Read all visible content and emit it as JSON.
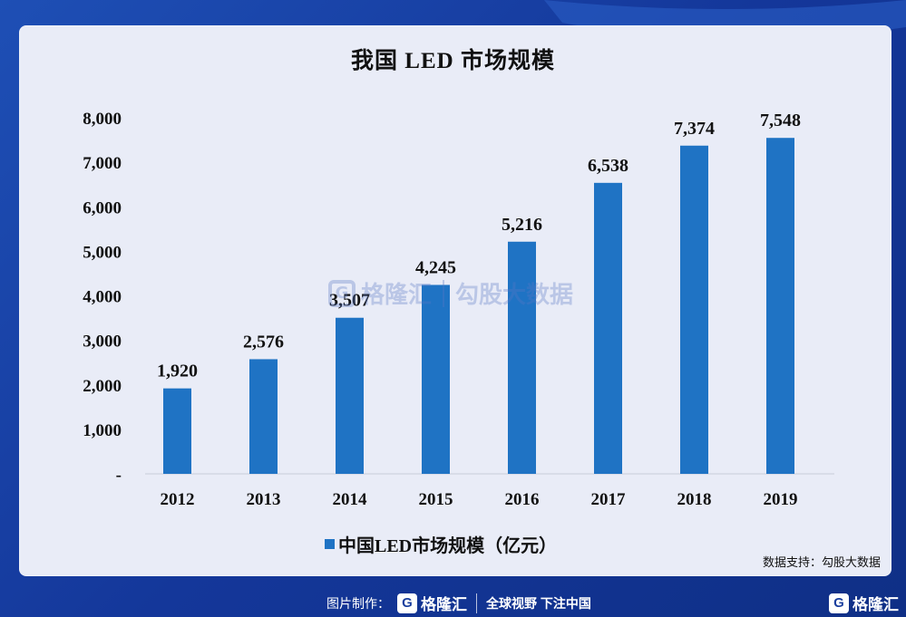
{
  "chart_data": {
    "type": "bar",
    "title": "我国 LED 市场规模",
    "categories": [
      "2012",
      "2013",
      "2014",
      "2015",
      "2016",
      "2017",
      "2018",
      "2019"
    ],
    "series": [
      {
        "name": "中国LED市场规模（亿元）",
        "values": [
          1920,
          2576,
          3507,
          4245,
          5216,
          6538,
          7374,
          7548
        ],
        "labels": [
          "1,920",
          "2,576",
          "3,507",
          "4,245",
          "5,216",
          "6,538",
          "7,374",
          "7,548"
        ]
      }
    ],
    "yticks": [
      "-",
      "1,000",
      "2,000",
      "3,000",
      "4,000",
      "5,000",
      "6,000",
      "7,000",
      "8,000"
    ],
    "ylim": [
      0,
      8000
    ],
    "grid": false,
    "legend": "bottom",
    "bar_color": "#1f73c4"
  },
  "source_text": "数据支持：勾股大数据",
  "watermark": {
    "brand": "格隆汇",
    "partner": "勾股大数据",
    "logo_letter": "G"
  },
  "footer": {
    "made_by": "图片制作：",
    "logo_letter": "G",
    "brand": "格隆汇",
    "slogan": "全球视野 下注中国",
    "corner_brand": "格隆汇"
  },
  "colors": {
    "background": "#14379a",
    "card": "#e9ecf7",
    "bar": "#1f73c4"
  }
}
